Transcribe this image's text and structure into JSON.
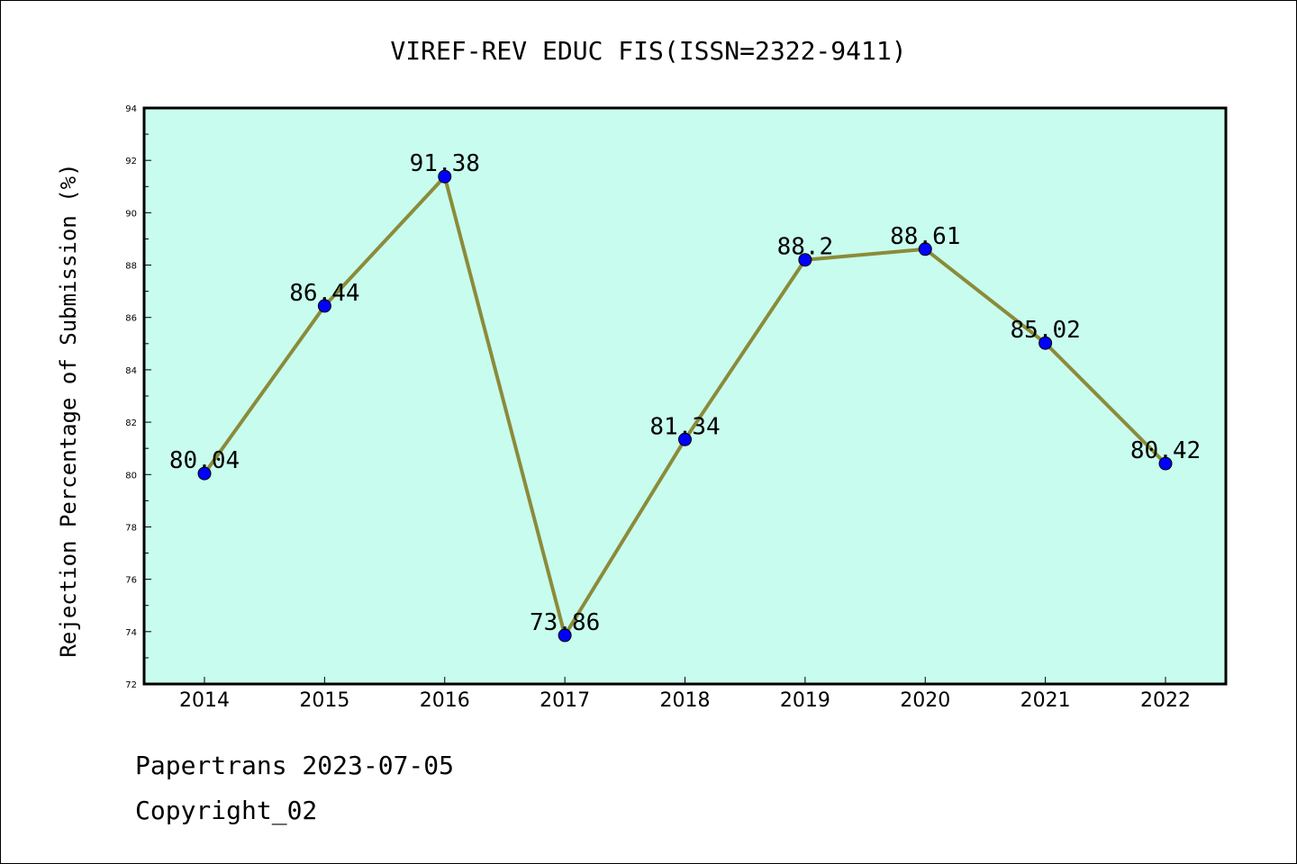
{
  "chart_data": {
    "type": "line",
    "title": "VIREF-REV EDUC FIS(ISSN=2322-9411)",
    "xlabel": "",
    "ylabel": "Rejection Percentage of Submission (%)",
    "categories": [
      "2014",
      "2015",
      "2016",
      "2017",
      "2018",
      "2019",
      "2020",
      "2021",
      "2022"
    ],
    "values": [
      80.04,
      86.44,
      91.38,
      73.86,
      81.34,
      88.2,
      88.61,
      85.02,
      80.42
    ],
    "data_labels": [
      "80.04",
      "86.44",
      "91.38",
      "73.86",
      "81.34",
      "88.2",
      "88.61",
      "85.02",
      "80.42"
    ],
    "ylim": [
      72,
      94
    ],
    "yticks": [
      "72",
      "74",
      "76",
      "78",
      "80",
      "82",
      "84",
      "86",
      "88",
      "90",
      "92",
      "94"
    ],
    "grid": false,
    "legend": "none",
    "colors": {
      "plot_background": "#c8fcee",
      "line": "#8b8b3a",
      "marker": "#0000ff"
    }
  },
  "footer": {
    "line1": "Papertrans 2023-07-05",
    "line2": "Copyright_02"
  }
}
